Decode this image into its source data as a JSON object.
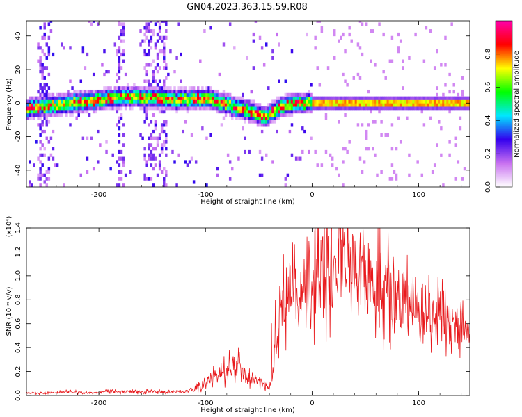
{
  "title": "GN04.2023.363.15.59.R08",
  "chart_data": [
    {
      "type": "heatmap",
      "xlabel": "Height of straight line (km)",
      "ylabel": "Frequency (Hz)",
      "xlim": [
        -268,
        148
      ],
      "ylim": [
        -50,
        49
      ],
      "xticks": [
        -200,
        -100,
        0,
        100
      ],
      "xtick_labels": [
        "-200",
        "-100",
        "0",
        "100"
      ],
      "yticks": [
        -40,
        -20,
        0,
        20,
        40
      ],
      "ytick_labels": [
        "-40",
        "-20",
        "0",
        "20",
        "40"
      ],
      "ridge": {
        "x": [
          -268,
          -230,
          -200,
          -175,
          -150,
          -125,
          -100,
          -85,
          -70,
          -60,
          -50,
          -45,
          -40,
          -30,
          -20,
          -10,
          0,
          50,
          100,
          148
        ],
        "frequency": [
          -3,
          0,
          2,
          4,
          3,
          2,
          3,
          0,
          -3,
          -5,
          -7,
          -9,
          -6,
          -2,
          -1,
          0,
          0,
          0,
          0,
          0
        ]
      },
      "colorbar": {
        "label": "Normalized spectral amplitude",
        "ticks": [
          0.0,
          0.2,
          0.4,
          0.6,
          0.8
        ],
        "tick_labels": [
          "0.0",
          "0.2",
          "0.4",
          "0.6",
          "0.8"
        ],
        "range": [
          0,
          1
        ],
        "colors": [
          "#ffffff",
          "#c870f0",
          "#3300ee",
          "#00e8ff",
          "#00ff00",
          "#ffff00",
          "#ff0000",
          "#ff00aa"
        ]
      }
    },
    {
      "type": "line",
      "xlabel": "Height of straight line (km)",
      "ylabel": "SNR (10 * v/v)",
      "y_multiplier": "(x10⁴)",
      "xlim": [
        -268,
        148
      ],
      "ylim": [
        0,
        1.4
      ],
      "xticks": [
        -200,
        -100,
        0,
        100
      ],
      "xtick_labels": [
        "-200",
        "-100",
        "0",
        "100"
      ],
      "yticks": [
        0,
        0.2,
        0.4,
        0.6,
        0.8,
        1.0,
        1.2,
        1.4
      ],
      "ytick_labels": [
        "0.0",
        "0.2",
        "0.4",
        "0.6",
        "0.8",
        "1.0",
        "1.2",
        "1.4"
      ],
      "color": "#e8191c",
      "series": [
        {
          "x": [
            -268,
            -250,
            -230,
            -210,
            -200,
            -190,
            -180,
            -160,
            -150,
            -140,
            -130,
            -120,
            -110,
            -100,
            -90,
            -80,
            -70,
            -60,
            -50,
            -40,
            -35,
            -30,
            -25,
            -20,
            -15,
            -10,
            -5,
            0,
            10,
            20,
            30,
            40,
            50,
            60,
            70,
            80,
            90,
            100,
            110,
            120,
            130,
            140,
            148
          ],
          "y": [
            0.02,
            0.02,
            0.03,
            0.02,
            0.02,
            0.04,
            0.03,
            0.03,
            0.04,
            0.03,
            0.03,
            0.03,
            0.06,
            0.1,
            0.16,
            0.22,
            0.25,
            0.14,
            0.12,
            0.06,
            0.3,
            0.75,
            0.85,
            0.85,
            0.8,
            0.82,
            0.9,
            0.92,
            1.05,
            1.12,
            1.15,
            1.12,
            1.0,
            0.92,
            0.9,
            0.82,
            0.78,
            0.74,
            0.7,
            0.66,
            0.6,
            0.55,
            0.5
          ]
        }
      ]
    }
  ]
}
